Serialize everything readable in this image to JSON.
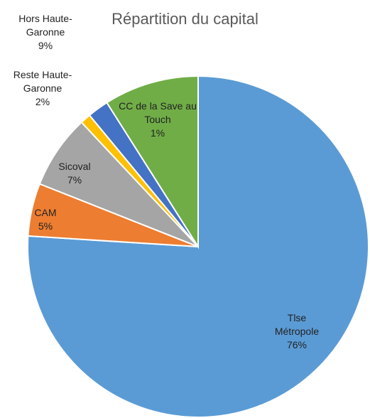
{
  "chart_data": {
    "type": "pie",
    "title": "Répartition du capital",
    "categories": [
      "Tlse Métropole",
      "CAM",
      "Sicoval",
      "CC de la Save au Touch",
      "Reste Haute-Garonne",
      "Hors Haute-Garonne"
    ],
    "values": [
      76,
      5,
      7,
      1,
      2,
      9
    ],
    "value_labels": [
      "76%",
      "5%",
      "7%",
      "1%",
      "2%",
      "9%"
    ],
    "colors": [
      "#5b9bd5",
      "#ed7d31",
      "#a5a5a5",
      "#ffc000",
      "#4472c4",
      "#70ad47"
    ]
  }
}
